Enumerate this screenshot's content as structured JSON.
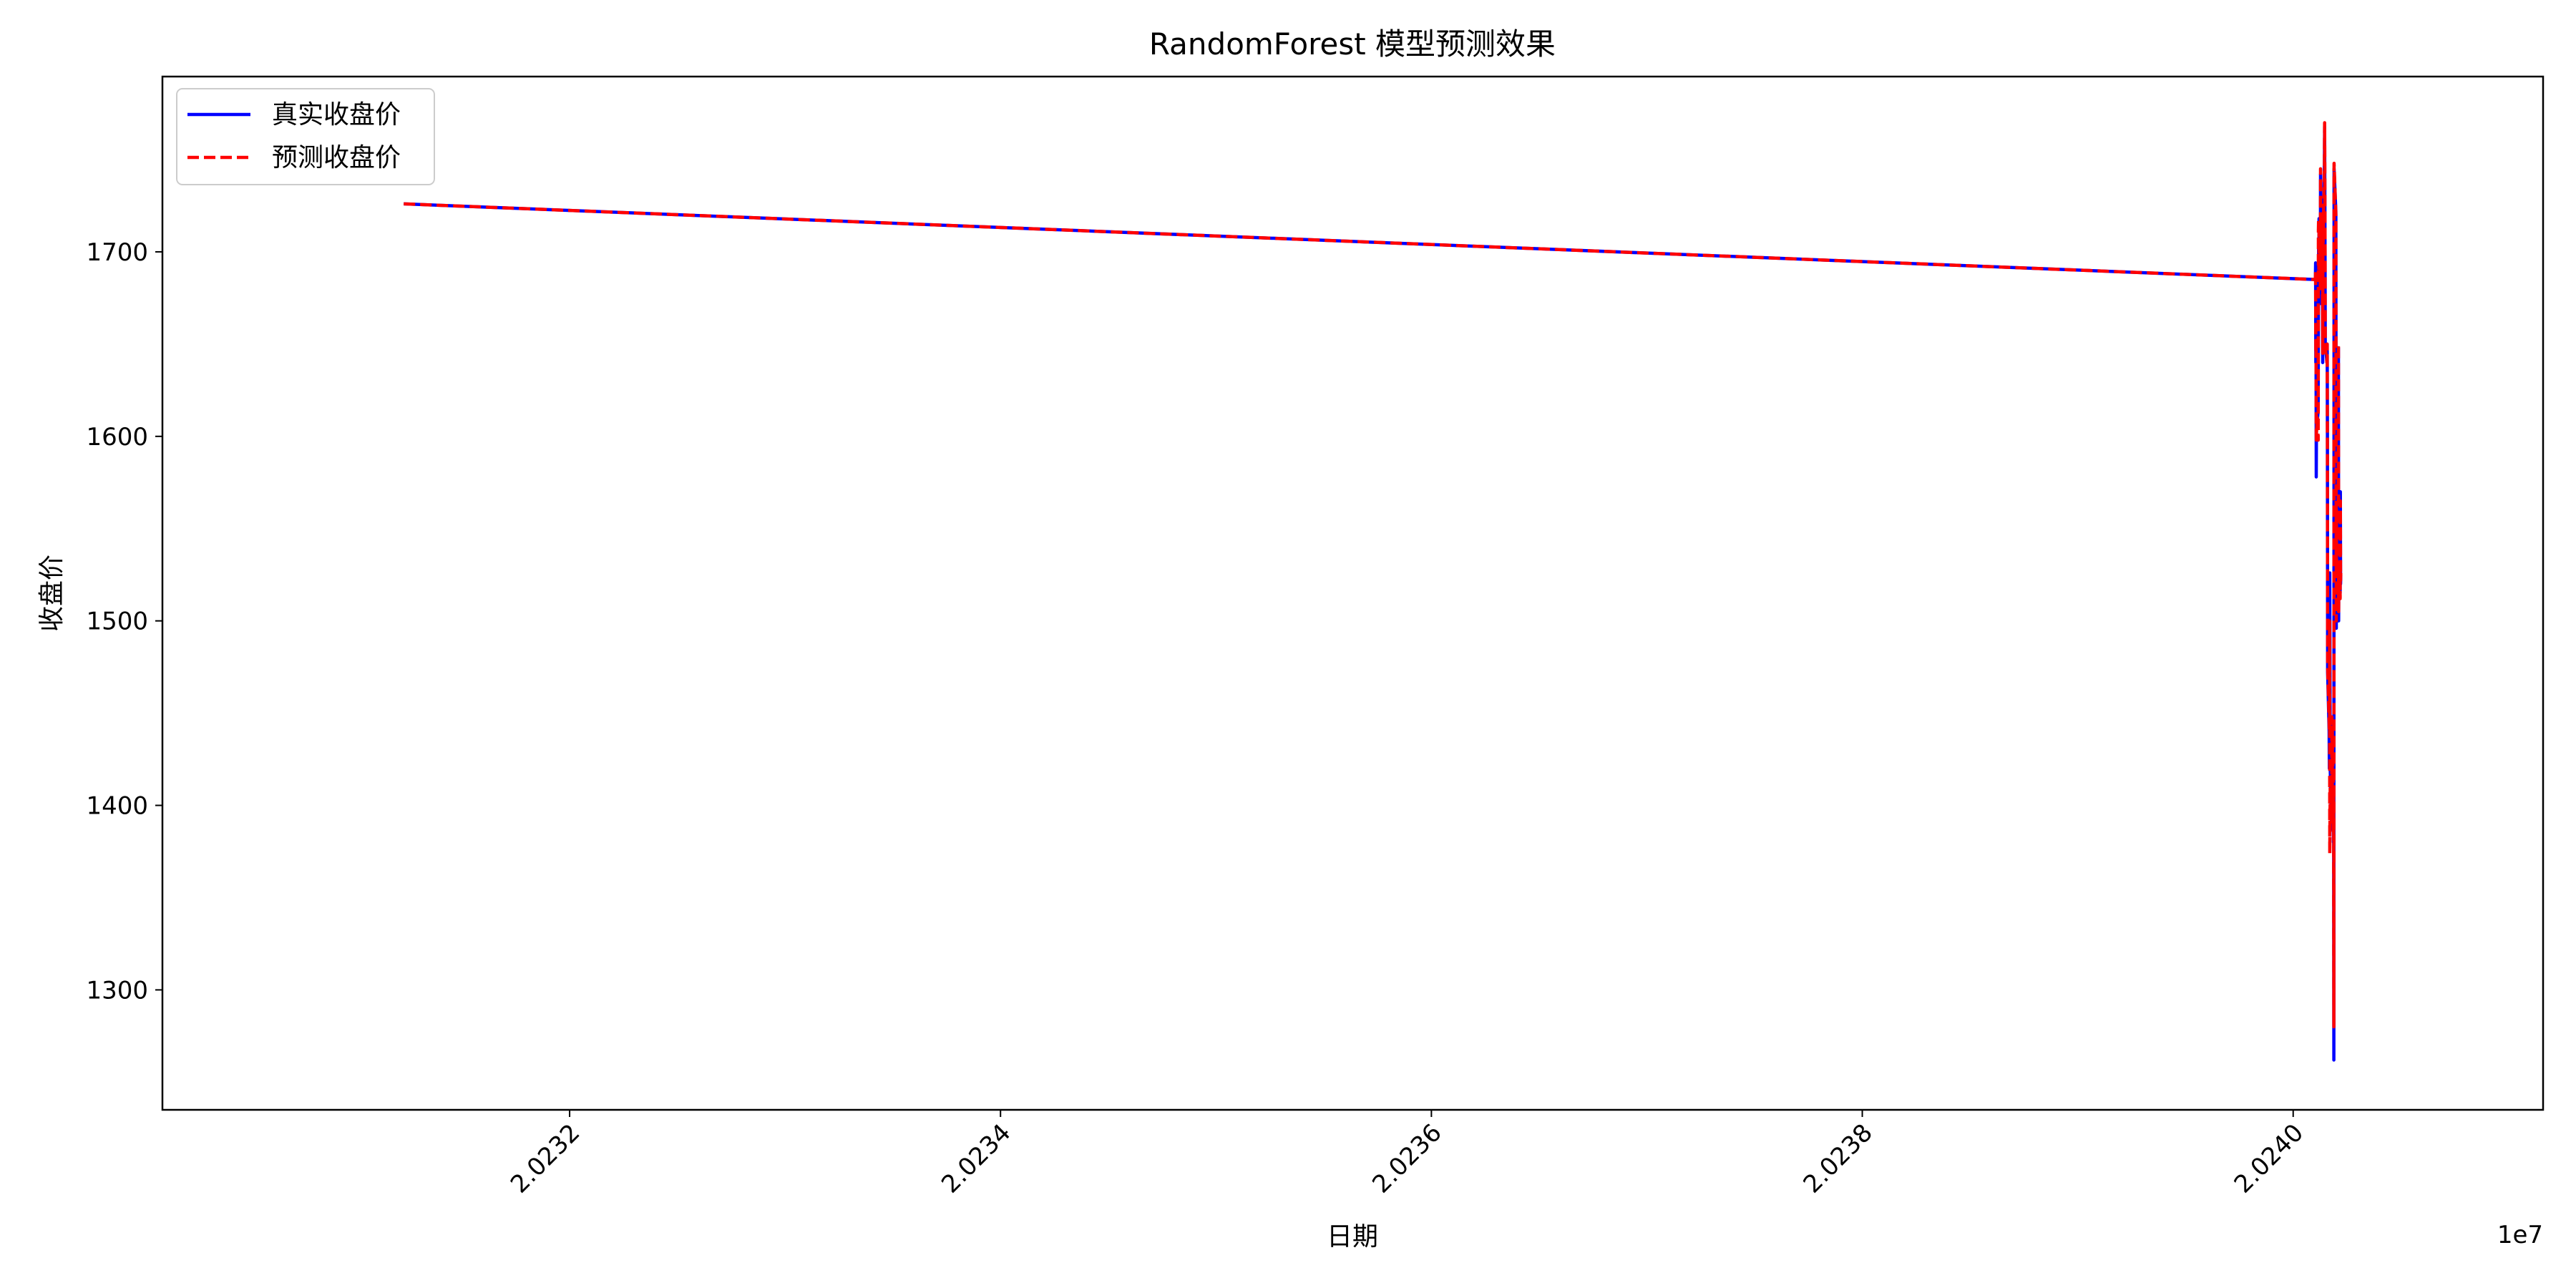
{
  "chart_data": {
    "type": "line",
    "title": "RandomForest 模型预测效果",
    "xlabel": "日期",
    "ylabel": "收盘价",
    "x_offset_label": "1e7",
    "xlim": [
      20230110,
      20241160
    ],
    "ylim": [
      1235,
      1795
    ],
    "x_ticks": [
      20232000,
      20234000,
      20236000,
      20238000,
      20240000
    ],
    "x_tick_labels": [
      "2.0232",
      "2.0234",
      "2.0236",
      "2.0238",
      "2.0240"
    ],
    "y_ticks": [
      1300,
      1400,
      1500,
      1600,
      1700
    ],
    "y_tick_labels": [
      "1300",
      "1400",
      "1500",
      "1600",
      "1700"
    ],
    "grid": false,
    "legend_position": "top-left",
    "series": [
      {
        "name": "真实收盘价",
        "color": "#0000ff",
        "style": "solid",
        "points": [
          [
            20231230,
            1726
          ],
          [
            20240103,
            1685
          ],
          [
            20240104,
            1694
          ],
          [
            20240105,
            1640
          ],
          [
            20240106,
            1650
          ],
          [
            20240107,
            1578
          ],
          [
            20240108,
            1605
          ],
          [
            20240112,
            1608
          ],
          [
            20240116,
            1614
          ],
          [
            20240117,
            1668
          ],
          [
            20240118,
            1705
          ],
          [
            20240119,
            1680
          ],
          [
            20240120,
            1718
          ],
          [
            20240121,
            1698
          ],
          [
            20240125,
            1690
          ],
          [
            20240126,
            1672
          ],
          [
            20240127,
            1742
          ],
          [
            20240128,
            1700
          ],
          [
            20240130,
            1710
          ],
          [
            20240135,
            1722
          ],
          [
            20240137,
            1640
          ],
          [
            20240138,
            1700
          ],
          [
            20240139,
            1705
          ],
          [
            20240140,
            1712
          ],
          [
            20240145,
            1750
          ],
          [
            20240146,
            1768
          ],
          [
            20240148,
            1700
          ],
          [
            20240149,
            1650
          ],
          [
            20240157,
            1640
          ],
          [
            20240158,
            1650
          ],
          [
            20240159,
            1605
          ],
          [
            20240160,
            1472
          ],
          [
            20240167,
            1440
          ],
          [
            20240168,
            1420
          ],
          [
            20240169,
            1480
          ],
          [
            20240170,
            1526
          ],
          [
            20240172,
            1420
          ],
          [
            20240179,
            1387
          ],
          [
            20240180,
            1440
          ],
          [
            20240181,
            1395
          ],
          [
            20240182,
            1444
          ],
          [
            20240186,
            1410
          ],
          [
            20240187,
            1380
          ],
          [
            20240188,
            1400
          ],
          [
            20240189,
            1262
          ],
          [
            20240190,
            1745
          ],
          [
            20240198,
            1722
          ],
          [
            20240199,
            1600
          ],
          [
            20240200,
            1496
          ],
          [
            20240201,
            1565
          ],
          [
            20240202,
            1528
          ],
          [
            20240209,
            1535
          ],
          [
            20240210,
            1648
          ],
          [
            20240211,
            1500
          ],
          [
            20240212,
            1530
          ],
          [
            20240217,
            1525
          ],
          [
            20240218,
            1515
          ],
          [
            20240219,
            1570
          ],
          [
            20240220,
            1520
          ],
          [
            20240221,
            1525
          ]
        ]
      },
      {
        "name": "预测收盘价",
        "color": "#ff0000",
        "style": "dashed",
        "points": [
          [
            20231230,
            1726
          ],
          [
            20240103,
            1685
          ],
          [
            20240104,
            1690
          ],
          [
            20240105,
            1645
          ],
          [
            20240106,
            1652
          ],
          [
            20240107,
            1598
          ],
          [
            20240108,
            1602
          ],
          [
            20240112,
            1610
          ],
          [
            20240116,
            1598
          ],
          [
            20240117,
            1712
          ],
          [
            20240118,
            1718
          ],
          [
            20240119,
            1690
          ],
          [
            20240120,
            1712
          ],
          [
            20240121,
            1700
          ],
          [
            20240125,
            1690
          ],
          [
            20240126,
            1680
          ],
          [
            20240127,
            1745
          ],
          [
            20240128,
            1702
          ],
          [
            20240130,
            1712
          ],
          [
            20240135,
            1720
          ],
          [
            20240137,
            1645
          ],
          [
            20240138,
            1705
          ],
          [
            20240139,
            1705
          ],
          [
            20240140,
            1712
          ],
          [
            20240145,
            1745
          ],
          [
            20240146,
            1770
          ],
          [
            20240148,
            1705
          ],
          [
            20240149,
            1648
          ],
          [
            20240157,
            1640
          ],
          [
            20240158,
            1650
          ],
          [
            20240159,
            1590
          ],
          [
            20240160,
            1475
          ],
          [
            20240167,
            1445
          ],
          [
            20240168,
            1440
          ],
          [
            20240169,
            1500
          ],
          [
            20240170,
            1374
          ],
          [
            20240172,
            1410
          ],
          [
            20240179,
            1390
          ],
          [
            20240180,
            1448
          ],
          [
            20240181,
            1390
          ],
          [
            20240182,
            1440
          ],
          [
            20240186,
            1412
          ],
          [
            20240187,
            1385
          ],
          [
            20240188,
            1405
          ],
          [
            20240189,
            1280
          ],
          [
            20240190,
            1748
          ],
          [
            20240198,
            1720
          ],
          [
            20240199,
            1595
          ],
          [
            20240200,
            1500
          ],
          [
            20240201,
            1560
          ],
          [
            20240202,
            1530
          ],
          [
            20240209,
            1538
          ],
          [
            20240210,
            1650
          ],
          [
            20240211,
            1505
          ],
          [
            20240212,
            1528
          ],
          [
            20240217,
            1525
          ],
          [
            20240218,
            1512
          ],
          [
            20240219,
            1565
          ],
          [
            20240220,
            1522
          ],
          [
            20240221,
            1526
          ]
        ]
      }
    ]
  }
}
